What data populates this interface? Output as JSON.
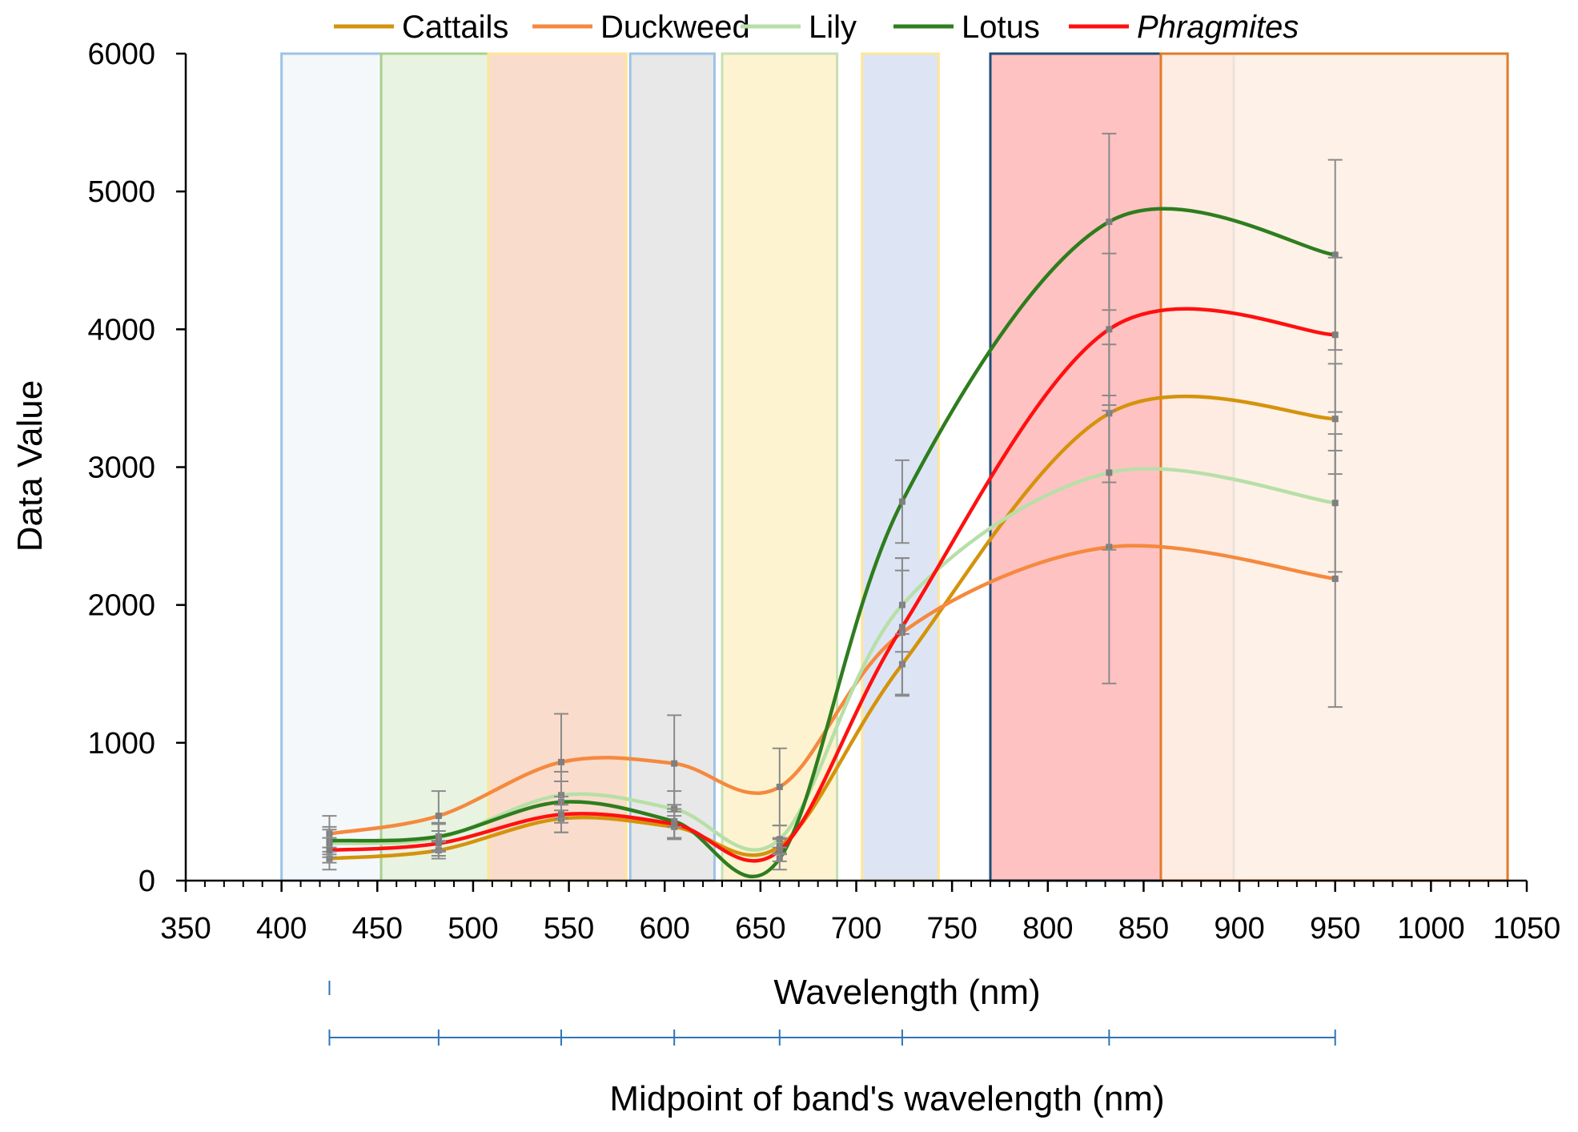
{
  "chart_data": {
    "type": "line",
    "title": "",
    "xlabel": "Wavelength (nm)",
    "secondary_xlabel": "Midpoint of  band's wavelength (nm)",
    "ylabel": "Data Value",
    "xlim": [
      350,
      1050
    ],
    "ylim": [
      0,
      6000
    ],
    "x_ticks": [
      350,
      400,
      450,
      500,
      550,
      600,
      650,
      700,
      750,
      800,
      850,
      900,
      950,
      1000,
      1050
    ],
    "y_ticks": [
      0,
      1000,
      2000,
      3000,
      4000,
      5000,
      6000
    ],
    "x_tick_labels": [
      "350",
      "400",
      "450",
      "500",
      "550",
      "600",
      "650",
      "700",
      "750",
      "800",
      "850",
      "900",
      "950",
      "1000",
      "1050"
    ],
    "y_tick_labels": [
      "0",
      "1000",
      "2000",
      "3000",
      "4000",
      "5000",
      "6000"
    ],
    "band_midpoints": [
      425,
      482,
      546,
      605,
      660,
      724,
      832,
      950
    ],
    "bands": [
      {
        "start": 400,
        "end": 452,
        "fill": "#f3f7fb",
        "stroke": "#9dc3e6"
      },
      {
        "start": 452,
        "end": 508,
        "fill": "#e6f2e0",
        "stroke": "#a9d18e"
      },
      {
        "start": 508,
        "end": 580,
        "fill": "#f9d9c8",
        "stroke": "#ffe699"
      },
      {
        "start": 582,
        "end": 626,
        "fill": "#e6e6e6",
        "stroke": "#9dc3e6"
      },
      {
        "start": 630,
        "end": 690,
        "fill": "#fdf2cc",
        "stroke": "#c5e0b4"
      },
      {
        "start": 703,
        "end": 743,
        "fill": "#dae3f3",
        "stroke": "#ffe699"
      },
      {
        "start": 770,
        "end": 897,
        "fill": "#ffbdbd",
        "stroke": "#1f4e79"
      },
      {
        "start": 859,
        "end": 1040,
        "fill": "#fef0e5",
        "stroke": "#e07b29"
      }
    ],
    "legend": [
      "Cattails",
      "Duckweed",
      "Lily",
      "Lotus",
      "Phragmites"
    ],
    "legend_position": "top",
    "series": [
      {
        "name": "Cattails",
        "color": "#d4930c",
        "italic": false,
        "values": [
          160,
          220,
          450,
          390,
          250,
          1570,
          3390,
          3350
        ],
        "error": [
          80,
          60,
          100,
          80,
          60,
          220,
          500,
          400
        ]
      },
      {
        "name": "Duckweed",
        "color": "#f5893e",
        "italic": false,
        "values": [
          340,
          470,
          860,
          850,
          680,
          1800,
          2420,
          2190
        ],
        "error": [
          130,
          180,
          350,
          350,
          280,
          450,
          990,
          930
        ]
      },
      {
        "name": "Lily",
        "color": "#b7dfa8",
        "italic": false,
        "values": [
          270,
          310,
          620,
          520,
          300,
          2000,
          2960,
          2740
        ],
        "error": [
          100,
          100,
          170,
          130,
          100,
          340,
          560,
          500
        ]
      },
      {
        "name": "Lotus",
        "color": "#2e7d1e",
        "italic": false,
        "values": [
          290,
          320,
          570,
          430,
          160,
          2750,
          4780,
          4540
        ],
        "error": [
          100,
          100,
          150,
          120,
          80,
          300,
          640,
          690
        ]
      },
      {
        "name": "Phragmites",
        "color": "#ff1010",
        "italic": true,
        "values": [
          220,
          270,
          480,
          410,
          220,
          1840,
          4000,
          3960
        ],
        "error": [
          90,
          90,
          130,
          110,
          80,
          500,
          550,
          560
        ]
      }
    ]
  }
}
